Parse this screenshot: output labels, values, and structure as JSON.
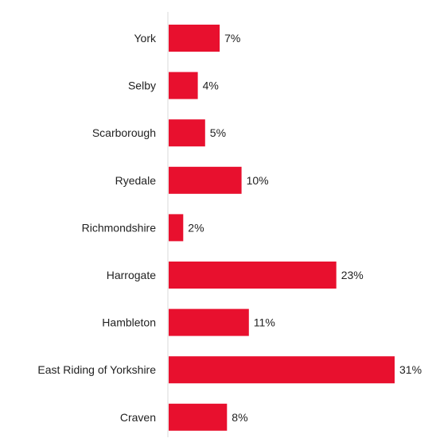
{
  "chart_data": {
    "type": "bar",
    "orientation": "horizontal",
    "categories": [
      "York",
      "Selby",
      "Scarborough",
      "Ryedale",
      "Richmondshire",
      "Harrogate",
      "Hambleton",
      "East Riding of Yorkshire",
      "Craven"
    ],
    "values": [
      7,
      4,
      5,
      10,
      2,
      23,
      11,
      31,
      8
    ],
    "value_labels": [
      "7%",
      "4%",
      "5%",
      "10%",
      "2%",
      "23%",
      "11%",
      "31%",
      "8%"
    ],
    "unit": "%",
    "xlim": [
      0,
      31
    ],
    "grid": false,
    "legend": "none",
    "bar_color": "#e8102e"
  }
}
